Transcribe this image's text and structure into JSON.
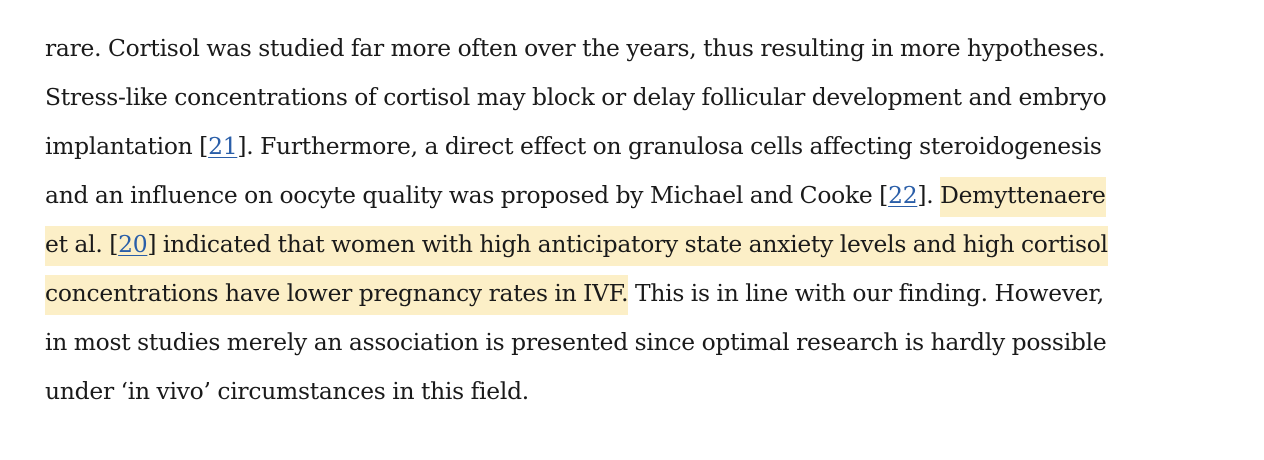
{
  "paragraph": {
    "line1": "rare. Cortisol was studied far more often over the years, thus resulting in more hypotheses.",
    "line2": "Stress-like concentrations of cortisol may block or delay follicular development and embryo",
    "line3_a": "implantation [",
    "ref21": "21",
    "line3_b": "]. Furthermore, a direct effect on granulosa cells affecting steroidogenesis",
    "line4_a": "and an influence on oocyte quality was proposed by Michael and Cooke [",
    "ref22": "22",
    "line4_b": "]. ",
    "line4_hl": "Demyttenaere",
    "line5_a": "et al. [",
    "ref20": "20",
    "line5_b": "] indicated that women with high anticipatory state anxiety levels and high cortisol",
    "line6_hl": "concentrations have lower pregnancy rates in IVF.",
    "line6_b": " This is in line with our finding. However,",
    "line7": "in most studies merely an association is presented since optimal research is hardly possible",
    "line8": "under ‘in vivo’ circumstances in this field."
  },
  "colors": {
    "highlight": "#fcefc7",
    "link": "#2a5ea8",
    "text": "#1a1a1a"
  }
}
